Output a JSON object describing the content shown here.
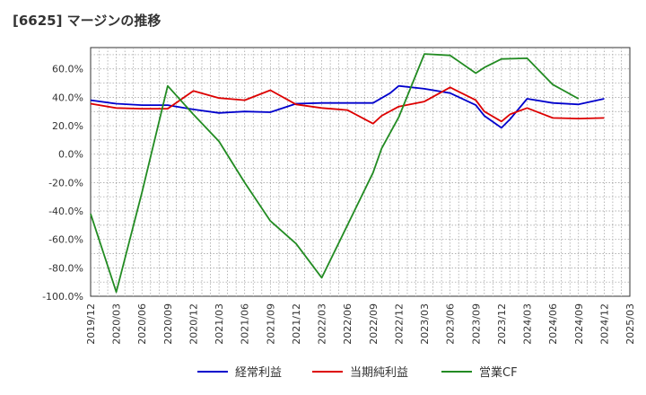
{
  "chart_data": {
    "type": "line",
    "title": "[6625]  マージンの推移",
    "xlabel": "",
    "ylabel": "",
    "ylim": [
      -100,
      75
    ],
    "yticks": [
      60,
      40,
      20,
      0,
      -20,
      -40,
      -60,
      -80,
      -100
    ],
    "ytick_labels": [
      "60.0%",
      "40.0%",
      "20.0%",
      "0.0%",
      "-20.0%",
      "-40.0%",
      "-60.0%",
      "-80.0%",
      "-100.0%"
    ],
    "x_ticks": [
      "2019/12",
      "2020/03",
      "2020/06",
      "2020/09",
      "2020/12",
      "2021/03",
      "2021/06",
      "2021/09",
      "2021/12",
      "2022/03",
      "2022/06",
      "2022/09",
      "2022/12",
      "2023/03",
      "2023/06",
      "2023/09",
      "2023/12",
      "2024/03",
      "2024/06",
      "2024/09",
      "2024/12",
      "2025/03"
    ],
    "grid": true,
    "legend_position": "bottom",
    "series": [
      {
        "name": "経常利益",
        "color": "#0000cc",
        "points": [
          [
            "2019/12",
            38.0
          ],
          [
            "2020/03",
            35.5
          ],
          [
            "2020/06",
            34.5
          ],
          [
            "2020/09",
            34.5
          ],
          [
            "2020/12",
            31.5
          ],
          [
            "2021/03",
            29.0
          ],
          [
            "2021/06",
            30.0
          ],
          [
            "2021/09",
            29.5
          ],
          [
            "2021/12",
            35.5
          ],
          [
            "2022/03",
            36.0
          ],
          [
            "2022/06",
            36.0
          ],
          [
            "2022/09",
            36.0
          ],
          [
            "2022/11",
            43.0
          ],
          [
            "2022/12",
            48.0
          ],
          [
            "2023/03",
            46.0
          ],
          [
            "2023/06",
            43.0
          ],
          [
            "2023/09",
            34.5
          ],
          [
            "2023/10",
            27.0
          ],
          [
            "2023/12",
            18.5
          ],
          [
            "2024/01",
            24.5
          ],
          [
            "2024/03",
            39.0
          ],
          [
            "2024/06",
            36.0
          ],
          [
            "2024/09",
            35.0
          ],
          [
            "2024/12",
            39.0
          ]
        ]
      },
      {
        "name": "当期純利益",
        "color": "#dd0000",
        "points": [
          [
            "2019/12",
            35.5
          ],
          [
            "2020/03",
            32.5
          ],
          [
            "2020/06",
            32.0
          ],
          [
            "2020/09",
            32.0
          ],
          [
            "2020/12",
            44.5
          ],
          [
            "2021/03",
            39.5
          ],
          [
            "2021/06",
            38.0
          ],
          [
            "2021/09",
            45.0
          ],
          [
            "2021/12",
            35.0
          ],
          [
            "2022/03",
            32.5
          ],
          [
            "2022/06",
            31.0
          ],
          [
            "2022/09",
            21.5
          ],
          [
            "2022/10",
            27.0
          ],
          [
            "2022/12",
            33.5
          ],
          [
            "2023/03",
            37.0
          ],
          [
            "2023/06",
            47.0
          ],
          [
            "2023/09",
            38.0
          ],
          [
            "2023/10",
            30.0
          ],
          [
            "2023/12",
            23.0
          ],
          [
            "2024/01",
            28.0
          ],
          [
            "2024/03",
            32.5
          ],
          [
            "2024/06",
            25.5
          ],
          [
            "2024/09",
            25.0
          ],
          [
            "2024/12",
            25.5
          ]
        ]
      },
      {
        "name": "営業CF",
        "color": "#228b22",
        "points": [
          [
            "2019/12",
            -42.0
          ],
          [
            "2020/03",
            -97.0
          ],
          [
            "2020/06",
            -27.0
          ],
          [
            "2020/09",
            48.0
          ],
          [
            "2020/12",
            28.0
          ],
          [
            "2021/03",
            9.0
          ],
          [
            "2021/06",
            -20.0
          ],
          [
            "2021/09",
            -47.0
          ],
          [
            "2021/12",
            -63.0
          ],
          [
            "2022/03",
            -87.0
          ],
          [
            "2022/06",
            -50.0
          ],
          [
            "2022/09",
            -13.0
          ],
          [
            "2022/10",
            4.0
          ],
          [
            "2022/12",
            26.0
          ],
          [
            "2023/03",
            70.5
          ],
          [
            "2023/06",
            69.5
          ],
          [
            "2023/09",
            57.0
          ],
          [
            "2023/10",
            61.0
          ],
          [
            "2023/12",
            67.0
          ],
          [
            "2024/03",
            67.5
          ],
          [
            "2024/06",
            49.0
          ],
          [
            "2024/09",
            39.0
          ]
        ]
      }
    ]
  }
}
